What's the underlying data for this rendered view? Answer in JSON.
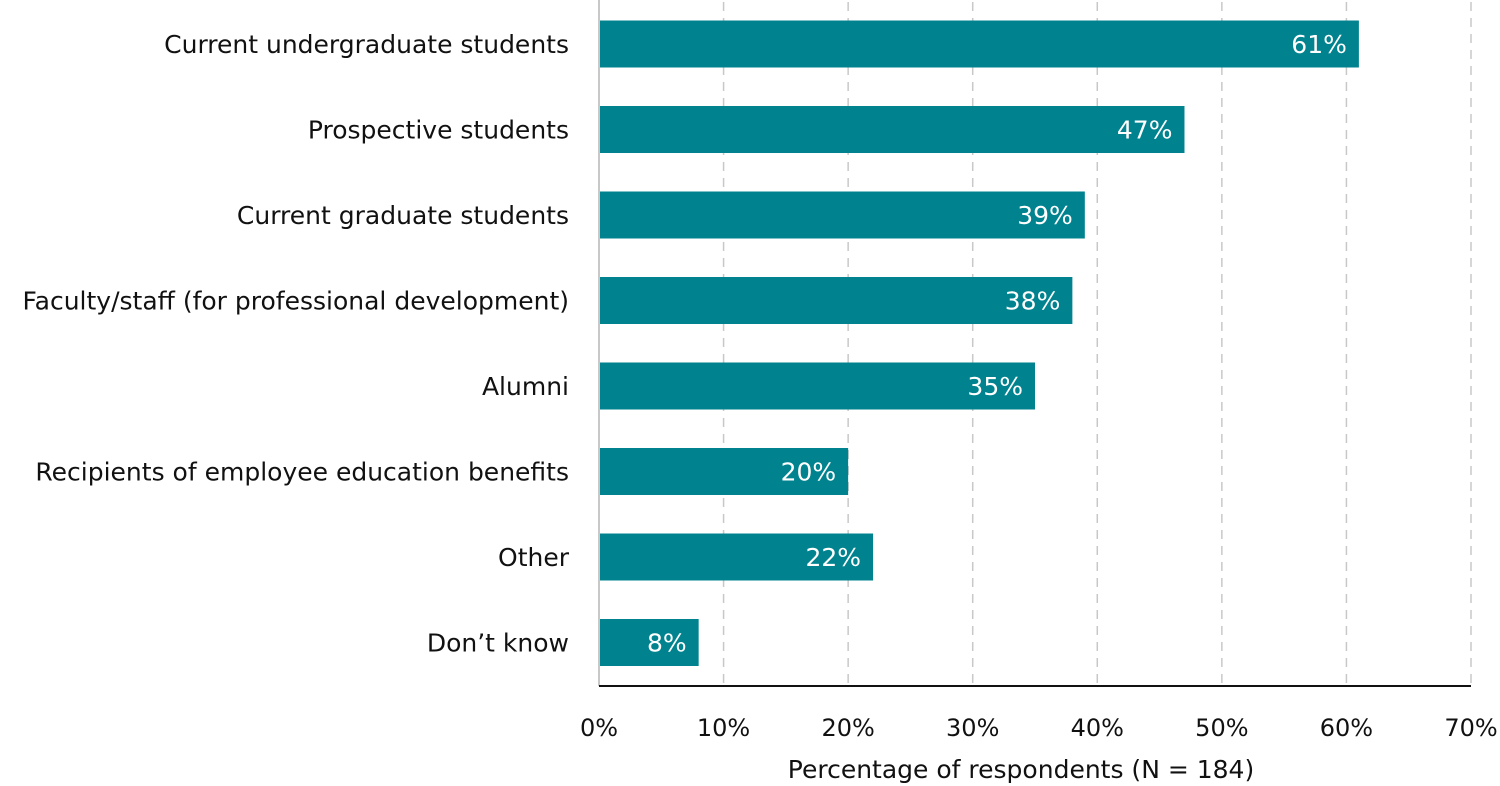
{
  "chart_data": {
    "type": "bar",
    "orientation": "horizontal",
    "categories": [
      "Current undergraduate students",
      "Prospective students",
      "Current graduate students",
      "Faculty/staff (for professional development)",
      "Alumni",
      "Recipients of employee education benefits",
      "Other",
      "Don’t know"
    ],
    "values": [
      61,
      47,
      39,
      38,
      35,
      20,
      22,
      8
    ],
    "data_labels": [
      "61%",
      "47%",
      "39%",
      "38%",
      "35%",
      "20%",
      "22%",
      "8%"
    ],
    "xlabel": "Percentage of respondents (N = 184)",
    "ylabel": "",
    "xlim": [
      0,
      70
    ],
    "xticks": [
      "0%",
      "10%",
      "20%",
      "30%",
      "40%",
      "50%",
      "60%",
      "70%"
    ],
    "grid": "vertical dashed",
    "bar_color": "#00838F",
    "legend": "none"
  }
}
